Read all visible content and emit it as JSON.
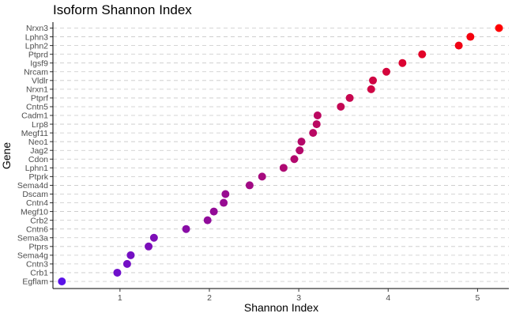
{
  "chart_data": {
    "type": "scatter",
    "title": "Isoform Shannon Index",
    "xlabel": "Shannon Index",
    "ylabel": "Gene",
    "xlim": [
      0.25,
      5.35
    ],
    "xticks": [
      1,
      2,
      3,
      4,
      5
    ],
    "grid": "horizontal-dashed",
    "color_low": "#5a12e8",
    "color_high": "#ff0000",
    "points": [
      {
        "gene": "Egflam",
        "value": 0.35
      },
      {
        "gene": "Crb1",
        "value": 0.97
      },
      {
        "gene": "Cntn3",
        "value": 1.08
      },
      {
        "gene": "Sema4g",
        "value": 1.12
      },
      {
        "gene": "Ptprs",
        "value": 1.32
      },
      {
        "gene": "Sema3a",
        "value": 1.38
      },
      {
        "gene": "Cntn6",
        "value": 1.74
      },
      {
        "gene": "Crb2",
        "value": 1.98
      },
      {
        "gene": "Megf10",
        "value": 2.05
      },
      {
        "gene": "Cntn4",
        "value": 2.16
      },
      {
        "gene": "Dscam",
        "value": 2.18
      },
      {
        "gene": "Sema4d",
        "value": 2.45
      },
      {
        "gene": "Ptprk",
        "value": 2.59
      },
      {
        "gene": "Lphn1",
        "value": 2.83
      },
      {
        "gene": "Cdon",
        "value": 2.95
      },
      {
        "gene": "Jag2",
        "value": 3.01
      },
      {
        "gene": "Neo1",
        "value": 3.03
      },
      {
        "gene": "Megf11",
        "value": 3.16
      },
      {
        "gene": "Lrp8",
        "value": 3.2
      },
      {
        "gene": "Cadm1",
        "value": 3.21
      },
      {
        "gene": "Cntn5",
        "value": 3.47
      },
      {
        "gene": "Ptprf",
        "value": 3.57
      },
      {
        "gene": "Nrxn1",
        "value": 3.81
      },
      {
        "gene": "Vldlr",
        "value": 3.83
      },
      {
        "gene": "Nrcam",
        "value": 3.98
      },
      {
        "gene": "Igsf9",
        "value": 4.16
      },
      {
        "gene": "Ptprd",
        "value": 4.38
      },
      {
        "gene": "Lphn2",
        "value": 4.79
      },
      {
        "gene": "Lphn3",
        "value": 4.92
      },
      {
        "gene": "Nrxn3",
        "value": 5.24
      }
    ]
  }
}
